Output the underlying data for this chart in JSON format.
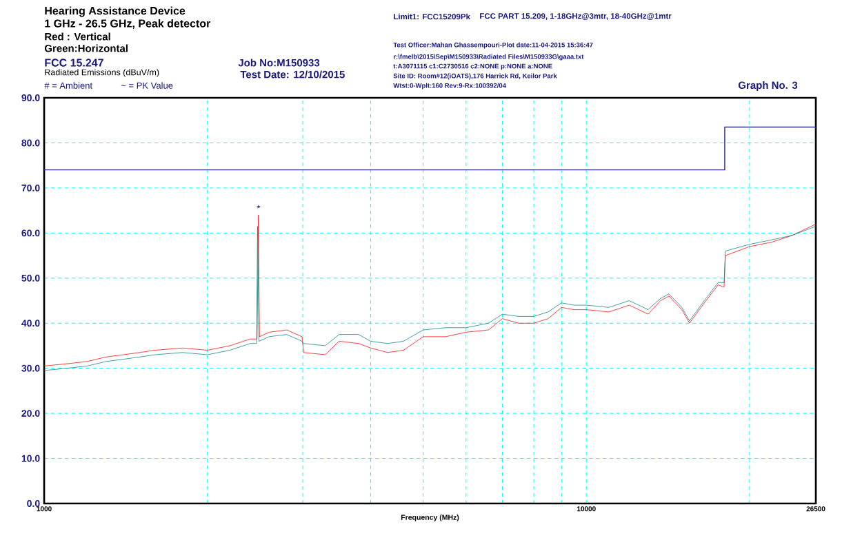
{
  "chart_data": {
    "type": "line",
    "title": "Hearing Assistance Device",
    "subtitle": "1 GHz - 26.5 GHz, Peak detector",
    "xlabel": "Frequency (MHz)",
    "ylabel": "Radiated Emissions (dBuV/m)",
    "log": "x",
    "grid": true,
    "xlim": [
      1000,
      26500
    ],
    "ylim": [
      0,
      90
    ],
    "xticks": [
      {
        "value": 1000,
        "label": "1000"
      },
      {
        "value": 2000,
        "label": null
      },
      {
        "value": 3000,
        "label": null
      },
      {
        "value": 4000,
        "label": null
      },
      {
        "value": 5000,
        "label": null
      },
      {
        "value": 6000,
        "label": null
      },
      {
        "value": 7000,
        "label": null
      },
      {
        "value": 8000,
        "label": null
      },
      {
        "value": 9000,
        "label": null
      },
      {
        "value": 10000,
        "label": "10000"
      },
      {
        "value": 20000,
        "label": null
      },
      {
        "value": 26500,
        "label": "26500"
      }
    ],
    "yticks": [
      {
        "value": 0,
        "label": "0.0"
      },
      {
        "value": 10,
        "label": "10.0"
      },
      {
        "value": 20,
        "label": "20.0"
      },
      {
        "value": 30,
        "label": "30.0"
      },
      {
        "value": 40,
        "label": "40.0"
      },
      {
        "value": 50,
        "label": "50.0"
      },
      {
        "value": 60,
        "label": "60.0"
      },
      {
        "value": 70,
        "label": "70.0"
      },
      {
        "value": 80,
        "label": "80.0"
      },
      {
        "value": 90,
        "label": "90.0"
      }
    ],
    "x": [
      1000,
      1100,
      1200,
      1300,
      1400,
      1500,
      1600,
      1800,
      2000,
      2200,
      2400,
      2465,
      2475,
      2490,
      2600,
      2800,
      2990,
      3010,
      3300,
      3500,
      3800,
      4000,
      4300,
      4600,
      5000,
      5500,
      6000,
      6600,
      7000,
      7500,
      8000,
      8500,
      9000,
      9500,
      10000,
      11000,
      12000,
      13000,
      13700,
      14200,
      15000,
      15500,
      16500,
      17500,
      17950,
      18050,
      20000,
      22000,
      24000,
      26500
    ],
    "series": [
      {
        "color": "#ff0000",
        "x": [
          1000,
          1100,
          1200,
          1300,
          1400,
          1500,
          1600,
          1800,
          2000,
          2200,
          2400,
          2470,
          2485,
          2495,
          2600,
          2800,
          2990,
          3010,
          3300,
          3500,
          3800,
          4000,
          4300,
          4600,
          5000,
          5500,
          6000,
          6600,
          7000,
          7500,
          8000,
          8500,
          9000,
          9500,
          10000,
          11000,
          12000,
          13000,
          13700,
          14200,
          15000,
          15500,
          16500,
          17500,
          17950,
          18050,
          20000,
          22000,
          24000,
          26500
        ],
        "values": [
          30.5,
          31,
          31.5,
          32.5,
          33,
          33.5,
          34,
          34.5,
          34,
          35,
          36.5,
          36.5,
          64,
          37,
          38,
          38.5,
          37,
          33.5,
          33,
          36,
          35.5,
          34.5,
          33.5,
          34,
          37,
          37,
          38,
          38.5,
          41,
          40,
          40,
          41,
          43.5,
          43,
          43,
          42.5,
          44,
          42,
          45,
          46,
          43,
          40,
          44.5,
          48.5,
          48,
          55,
          57,
          58,
          59.5,
          62
        ]
      },
      {
        "color": "#008080",
        "values": [
          29.5,
          30,
          30.5,
          31.5,
          32,
          32.5,
          33,
          33.5,
          33,
          34,
          35.5,
          35.5,
          61.5,
          36,
          37,
          37.5,
          36,
          35.5,
          35,
          37.5,
          37.5,
          36,
          35.5,
          36,
          38.5,
          39,
          39,
          40,
          42,
          41.5,
          41.5,
          42.5,
          44.5,
          44,
          44,
          43.5,
          45,
          43,
          45.5,
          46.5,
          43.5,
          40.5,
          45,
          49,
          49,
          56,
          57.5,
          58.5,
          59.5,
          61.5
        ]
      },
      {
        "type": "step",
        "color": "#2e3192",
        "x": [
          1000,
          18000,
          26500
        ],
        "values": [
          74,
          83.5,
          83.5
        ]
      }
    ],
    "annotations": [
      "Red : Vertical",
      "Green:Horizontal",
      "FCC 15.247",
      "# = Ambient",
      "~ = PK Value",
      "Job No:M150933",
      "Test Date: 12/10/2015",
      "Limit1: FCC15209Pk",
      "FCC PART 15.209, 1-18GHz@3mtr, 18-40GHz@1mtr",
      "r:\\fmelb\\2015\\Sep\\M150933\\Radiated Files\\M150933G\\gaaa.txt",
      "t:A3071115 c1:C2730516  c2:NONE p:NONE a:NONE",
      "Site ID: Room#12(iOATS),176 Harrick Rd, Keilor Park",
      "Test Officer:Mahan Ghassempouri-Plot date:11-04-2015 15:36:47",
      "Wtst:0-Wplt:160 Rev:9-Rx:100392/04",
      "Graph No.  3",
      {
        "text": "*",
        "x": 2485,
        "y": 64
      }
    ]
  }
}
